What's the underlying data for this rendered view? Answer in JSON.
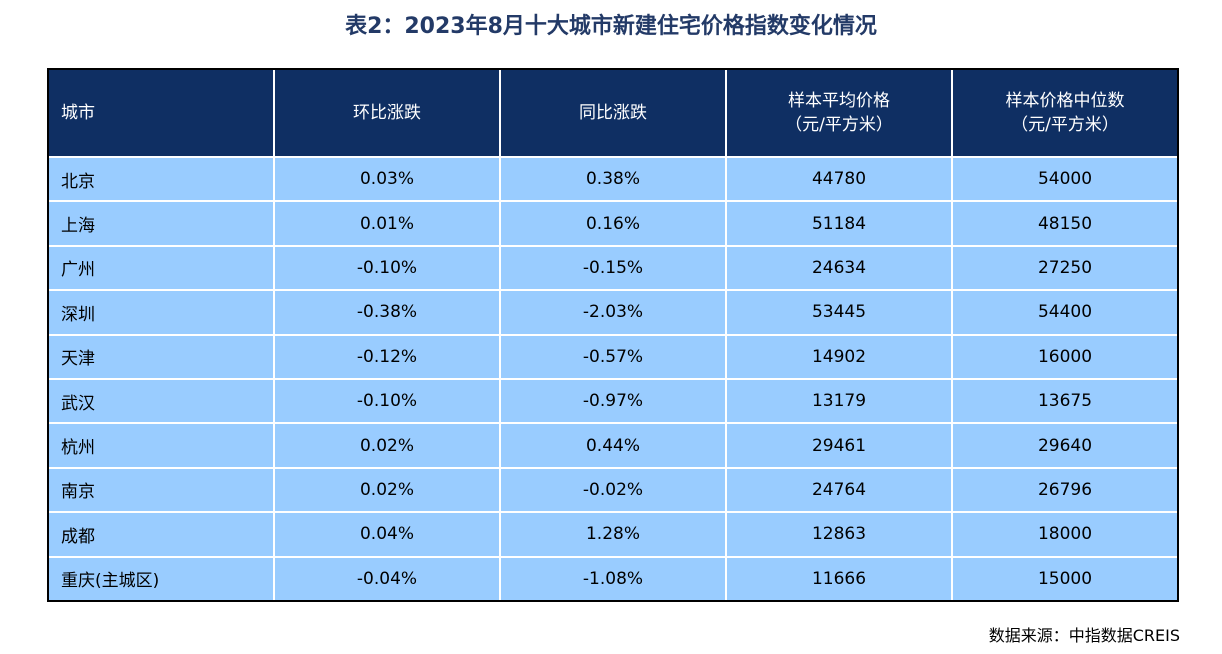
{
  "title": "表2：2023年8月十大城市新建住宅价格指数变化情况",
  "table": {
    "headers": [
      {
        "line1": "城市",
        "line2": ""
      },
      {
        "line1": "环比涨跌",
        "line2": ""
      },
      {
        "line1": "同比涨跌",
        "line2": ""
      },
      {
        "line1": "样本平均价格",
        "line2": "（元/平方米）"
      },
      {
        "line1": "样本价格中位数",
        "line2": "（元/平方米）"
      }
    ],
    "rows": [
      [
        "北京",
        "0.03%",
        "0.38%",
        "44780",
        "54000"
      ],
      [
        "上海",
        "0.01%",
        "0.16%",
        "51184",
        "48150"
      ],
      [
        "广州",
        "-0.10%",
        "-0.15%",
        "24634",
        "27250"
      ],
      [
        "深圳",
        "-0.38%",
        "-2.03%",
        "53445",
        "54400"
      ],
      [
        "天津",
        "-0.12%",
        "-0.57%",
        "14902",
        "16000"
      ],
      [
        "武汉",
        "-0.10%",
        "-0.97%",
        "13179",
        "13675"
      ],
      [
        "杭州",
        "0.02%",
        "0.44%",
        "29461",
        "29640"
      ],
      [
        "南京",
        "0.02%",
        "-0.02%",
        "24764",
        "26796"
      ],
      [
        "成都",
        "0.04%",
        "1.28%",
        "12863",
        "18000"
      ],
      [
        "重庆(主城区)",
        "-0.04%",
        "-1.08%",
        "11666",
        "15000"
      ]
    ]
  },
  "source": "数据来源：中指数据CREIS",
  "colors": {
    "title": "#233a67",
    "header_bg": "#0f2f63",
    "row_bg": "#99ccff"
  }
}
